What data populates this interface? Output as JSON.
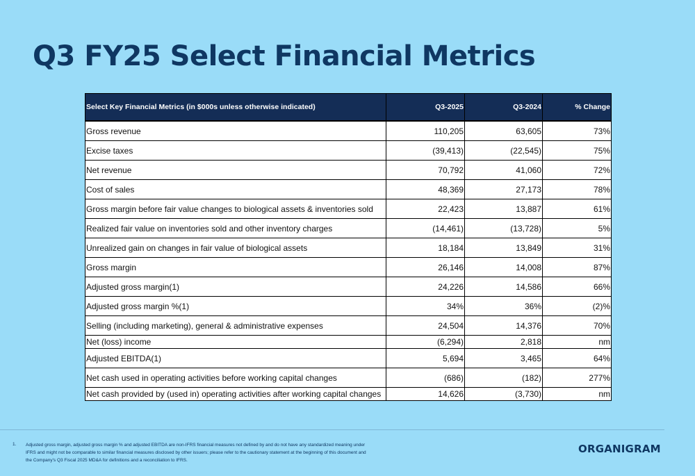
{
  "page": {
    "title": "Q3 FY25 Select Financial Metrics"
  },
  "table": {
    "headers": [
      "Select Key Financial Metrics (in $000s unless otherwise indicated)",
      "Q3-2025",
      "Q3-2024",
      "% Change"
    ],
    "rows": [
      {
        "label": "Gross revenue",
        "q3_2025": "110,205",
        "q3_2024": "63,605",
        "change": "73%"
      },
      {
        "label": "Excise taxes",
        "q3_2025": "(39,413)",
        "q3_2024": "(22,545)",
        "change": "75%"
      },
      {
        "label": "Net revenue",
        "q3_2025": "70,792",
        "q3_2024": "41,060",
        "change": "72%"
      },
      {
        "label": "Cost of sales",
        "q3_2025": "48,369",
        "q3_2024": "27,173",
        "change": "78%"
      },
      {
        "label": "Gross margin before fair value changes to biological assets & inventories sold",
        "q3_2025": "22,423",
        "q3_2024": "13,887",
        "change": "61%"
      },
      {
        "label": "Realized fair value on inventories sold and other inventory charges",
        "q3_2025": "(14,461)",
        "q3_2024": "(13,728)",
        "change": "5%"
      },
      {
        "label": "Unrealized gain on changes in fair value of biological assets",
        "q3_2025": "18,184",
        "q3_2024": "13,849",
        "change": "31%"
      },
      {
        "label": "Gross margin",
        "q3_2025": "26,146",
        "q3_2024": "14,008",
        "change": "87%"
      },
      {
        "label": "Adjusted gross margin(1)",
        "q3_2025": "24,226",
        "q3_2024": "14,586",
        "change": "66%"
      },
      {
        "label": "Adjusted gross margin %(1)",
        "q3_2025": "34%",
        "q3_2024": "36%",
        "change": "(2)%"
      },
      {
        "label": "Selling (including marketing), general & administrative expenses",
        "q3_2025": "24,504",
        "q3_2024": "14,376",
        "change": "70%"
      },
      {
        "label": "Net (loss) income",
        "q3_2025": "(6,294)",
        "q3_2024": "2,818",
        "change": "nm"
      },
      {
        "label": "Adjusted EBITDA(1)",
        "q3_2025": "5,694",
        "q3_2024": "3,465",
        "change": "64%"
      },
      {
        "label": "Net cash used in operating activities before working capital changes",
        "q3_2025": "(686)",
        "q3_2024": "(182)",
        "change": "277%"
      },
      {
        "label": "Net cash provided by (used in) operating activities after working capital changes",
        "q3_2025": "14,626",
        "q3_2024": "(3,730)",
        "change": "nm"
      }
    ]
  },
  "footnote": {
    "number": "1.",
    "text": "Adjusted gross margin, adjusted gross margin % and adjusted EBITDA are non-IFRS financial measures not defined by and do not have any standardized meaning under IFRS and might not be comparable to similar financial measures disclosed by other issuers; please refer to the cautionary statement at the beginning of this document and the Company's Q3 Fiscal 2025 MD&A for definitions and a reconciliation to IFRS."
  },
  "brand": {
    "logo_text": "ORGANIGRAM"
  },
  "colors": {
    "background": "#9adcf8",
    "header_fill": "#142d56",
    "title": "#0f3762"
  }
}
